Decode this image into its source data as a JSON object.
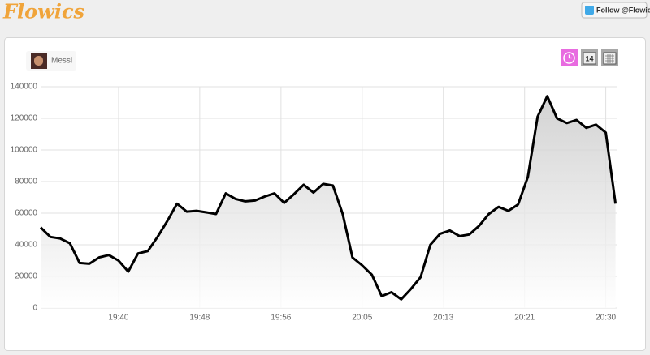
{
  "header": {
    "logo": "Flowics",
    "follow_button": "Follow @Flowics"
  },
  "controls": {
    "day_icon": "14"
  },
  "chart_data": {
    "type": "line",
    "series": [
      {
        "name": "Messi",
        "color": "#000000",
        "values": [
          51000,
          45000,
          44000,
          41000,
          28500,
          28000,
          32000,
          33500,
          30000,
          23000,
          34500,
          36000,
          45000,
          55000,
          66000,
          61000,
          61500,
          60500,
          59500,
          72500,
          69000,
          67500,
          68000,
          70500,
          72500,
          66500,
          72000,
          78000,
          73000,
          78500,
          77500,
          59500,
          32000,
          27000,
          21000,
          7500,
          10000,
          5500,
          12000,
          19500,
          40000,
          47000,
          49000,
          45500,
          46500,
          52000,
          59500,
          64000,
          61500,
          65500,
          83000,
          121000,
          134000,
          120000,
          117000,
          119000,
          114000,
          116000,
          111000,
          66000
        ]
      }
    ],
    "x": [
      0,
      1,
      2,
      3,
      4,
      5,
      6,
      7,
      8,
      9,
      10,
      11,
      12,
      13,
      14,
      15,
      16,
      17,
      18,
      19,
      20,
      21,
      22,
      23,
      24,
      25,
      26,
      27,
      28,
      29,
      30,
      31,
      32,
      33,
      34,
      35,
      36,
      37,
      38,
      39,
      40,
      41,
      42,
      43,
      44,
      45,
      46,
      47,
      48,
      49,
      50,
      51,
      52,
      53,
      54,
      55,
      56,
      57,
      58,
      59
    ],
    "xlim": [
      0,
      59.2
    ],
    "xticks": [
      {
        "value": 8,
        "label": "19:40"
      },
      {
        "value": 16.33,
        "label": "19:48"
      },
      {
        "value": 24.67,
        "label": "19:56"
      },
      {
        "value": 33,
        "label": "20:05"
      },
      {
        "value": 41.33,
        "label": "20:13"
      },
      {
        "value": 49.67,
        "label": "20:21"
      },
      {
        "value": 58,
        "label": "20:30"
      }
    ],
    "ylim": [
      0,
      140000
    ],
    "yticks": [
      0,
      20000,
      40000,
      60000,
      80000,
      100000,
      120000,
      140000
    ],
    "grid": true
  }
}
